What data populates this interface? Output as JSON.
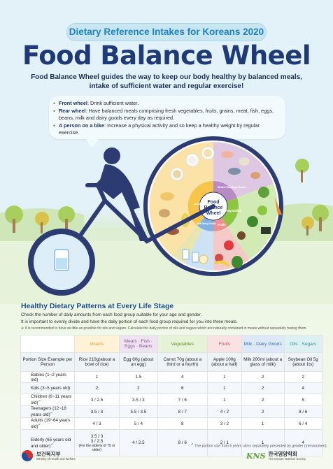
{
  "header": {
    "tag": "Dietary Reference Intakes  for Koreans 2020",
    "title": "Food Balance Wheel",
    "subtitle": "Food Balance Wheel guides the way to keep our body healthy by balanced meals, intake of sufficient water and regular exercise!"
  },
  "notes": [
    {
      "label": "Front wheel",
      "text": ": Drink sufficient water."
    },
    {
      "label": "Rear wheel",
      "text": ": Have balanced meals comprising fresh vegetables, fruits, grains, meat, fish, eggs, beans, milk and dairy goods every day as required."
    },
    {
      "label": "A person on a bike",
      "text": ": Increase a physical activity and so keep a healthy weight by regular exercise."
    }
  ],
  "wheel": {
    "center_line1": "Food",
    "center_line2": "Balance",
    "center_line3": "Wheel",
    "labels": [
      "Grains",
      "Meats·Fish·Eggs·Beans",
      "Vegetables",
      "Fruits",
      "Milk·Dairy Goods"
    ],
    "colors": {
      "grains": "#f6c54a",
      "meats": "#b88bc4",
      "vegetables": "#8cc63f",
      "fruits": "#ef8f8f",
      "milk": "#7fb4e2",
      "oils": "#e6d770"
    }
  },
  "section": {
    "title": "Healthy Dietary Patterns at Every Life Stage",
    "line1": "Check the number of daily amounts from each food group suitable for your age and gender.",
    "line2": "It is important to evenly divide and have the daily portion of each food group required for you into three meals.",
    "line3": "※ It is recommended to have as little as possible for oils and sugars. Calculate the daily portion of oils and sugars which are naturally contained in meals without separately having them."
  },
  "table": {
    "columns": [
      "Grains",
      "Meats · Fish · Eggs · Beans",
      "Vegetables",
      "Fruits",
      "Milk · Dairy Goods",
      "Oils · Sugars"
    ],
    "example_label": "Portion Size Example per Person",
    "examples": [
      "Rice 210g(about a bowl of rice)",
      "Egg 60g (about an egg)",
      "Carrot 70g (about a third or a fourth)",
      "Apple 100g (about a half)",
      "Milk 200ml (about a glass of milk)",
      "Soybean Oil 5g (about 1ts)"
    ],
    "rows": [
      {
        "label": "Babies (1~2 years old)",
        "values": [
          "1",
          "1.5",
          "4",
          "1",
          "2",
          "2"
        ]
      },
      {
        "label": "Kids (3~5 years old)",
        "values": [
          "2",
          "2",
          "6",
          "1",
          "2",
          "4"
        ]
      },
      {
        "label": "Children (6~11 years old)",
        "values": [
          "3 / 2.5",
          "3.5 / 3",
          "7 / 6",
          "1",
          "2",
          "5"
        ]
      },
      {
        "label": "Teenagers (12~18 years old)",
        "values": [
          "3.5 / 3",
          "5.5 / 3.5",
          "8 / 7",
          "4 / 2",
          "2",
          "8 / 6"
        ]
      },
      {
        "label": "Adults (19~64 years old)",
        "values": [
          "4 / 3",
          "5 / 4",
          "8",
          "3 / 2",
          "1",
          "6 / 4"
        ]
      }
    ],
    "elderly": {
      "label": "Elderly (65 years old and older)",
      "grain1": "3.5 / 3",
      "grain2": "3 / 2.5",
      "grain_note": "(For the elderly of 75 or older)",
      "values": [
        "4 / 2.5",
        "8 / 6",
        "2 / 1",
        "1",
        "4"
      ]
    }
  },
  "footnote": "The portion size from 6 years old is separately presented by gender (men/women).",
  "logos": {
    "ministry_kor": "보건복지부",
    "ministry_eng": "Ministry of Health and Welfare",
    "society_mark": "KNS",
    "society_kor": "한국영양학회",
    "society_eng": "The Korean Nutrition Society"
  }
}
